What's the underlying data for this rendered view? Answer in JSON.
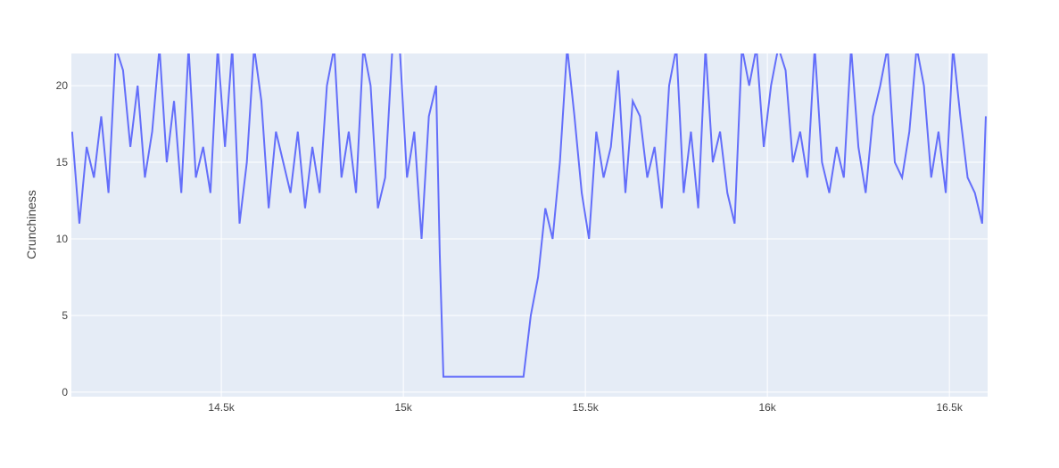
{
  "chart_data": {
    "type": "line",
    "y_label": "Crunchiness",
    "x": [
      14090,
      14110,
      14130,
      14150,
      14170,
      14190,
      14210,
      14230,
      14250,
      14270,
      14290,
      14310,
      14330,
      14350,
      14370,
      14390,
      14410,
      14430,
      14450,
      14470,
      14490,
      14510,
      14530,
      14550,
      14570,
      14590,
      14610,
      14630,
      14650,
      14670,
      14690,
      14710,
      14730,
      14750,
      14770,
      14790,
      14810,
      14830,
      14850,
      14870,
      14890,
      14910,
      14930,
      14950,
      14970,
      14990,
      15010,
      15030,
      15050,
      15070,
      15090,
      15100,
      15110,
      15130,
      15150,
      15170,
      15190,
      15210,
      15230,
      15250,
      15270,
      15290,
      15310,
      15330,
      15350,
      15370,
      15390,
      15410,
      15430,
      15450,
      15470,
      15490,
      15510,
      15530,
      15550,
      15570,
      15590,
      15610,
      15630,
      15650,
      15670,
      15690,
      15710,
      15730,
      15750,
      15770,
      15790,
      15810,
      15830,
      15850,
      15870,
      15890,
      15910,
      15930,
      15950,
      15970,
      15990,
      16010,
      16030,
      16050,
      16070,
      16090,
      16110,
      16130,
      16150,
      16170,
      16190,
      16210,
      16230,
      16250,
      16270,
      16290,
      16310,
      16330,
      16350,
      16370,
      16390,
      16410,
      16430,
      16450,
      16470,
      16490,
      16510,
      16530,
      16550,
      16570,
      16590,
      16600
    ],
    "series": [
      {
        "color": "#636efa",
        "values": [
          17,
          11,
          16,
          14,
          18,
          13,
          22.5,
          21,
          16,
          20,
          14,
          17,
          22.5,
          15,
          19,
          13,
          22.5,
          14,
          16,
          13,
          22.5,
          16,
          22.5,
          11,
          15,
          22.5,
          19,
          12,
          17,
          15,
          13,
          17,
          12,
          16,
          13,
          20,
          22.5,
          14,
          17,
          13,
          22.5,
          20,
          12,
          14,
          22.5,
          22.5,
          14,
          17,
          10,
          18,
          20,
          9,
          1,
          1,
          1,
          1,
          1,
          1,
          1,
          1,
          1,
          1,
          1,
          1,
          5,
          7.5,
          12,
          10,
          15,
          22.5,
          18,
          13,
          10,
          17,
          14,
          16,
          21,
          13,
          19,
          18,
          14,
          16,
          12,
          20,
          22.5,
          13,
          17,
          12,
          22.5,
          15,
          17,
          13,
          11,
          22.5,
          20,
          22.5,
          16,
          20,
          22.5,
          21,
          15,
          17,
          14,
          22.5,
          15,
          13,
          16,
          14,
          22.5,
          16,
          13,
          18,
          20,
          22.5,
          15,
          14,
          17,
          22.5,
          20,
          14,
          17,
          13,
          22.5,
          18,
          14,
          13,
          11,
          18
        ]
      }
    ],
    "xlim": [
      14088,
      16605
    ],
    "ylim": [
      -0.3,
      22.1
    ],
    "xticks": [
      {
        "value": 14500,
        "label": "14.5k"
      },
      {
        "value": 15000,
        "label": "15k"
      },
      {
        "value": 15500,
        "label": "15.5k"
      },
      {
        "value": 16000,
        "label": "16k"
      },
      {
        "value": 16500,
        "label": "16.5k"
      }
    ],
    "yticks": [
      0,
      5,
      10,
      15,
      20
    ],
    "grid": true
  }
}
